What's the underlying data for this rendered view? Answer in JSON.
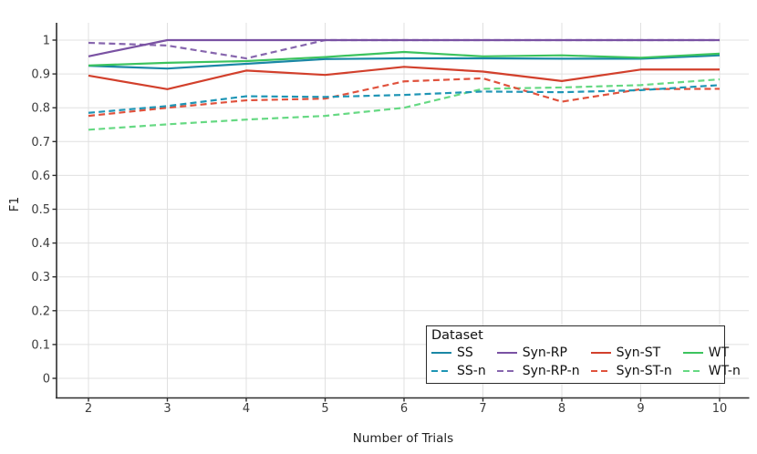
{
  "chart_data": {
    "type": "line",
    "title": "",
    "xlabel": "Number of Trials",
    "ylabel": "F1",
    "legend_title": "Dataset",
    "legend_position": "bottom-right-inside",
    "grid": true,
    "x": [
      2,
      3,
      4,
      5,
      6,
      7,
      8,
      9,
      10
    ],
    "x_tick_labels": [
      "2",
      "3",
      "4",
      "5",
      "6",
      "7",
      "8",
      "9",
      "10"
    ],
    "y_ticks": [
      0,
      0.1,
      0.2,
      0.3,
      0.4,
      0.5,
      0.6,
      0.7,
      0.8,
      0.9,
      1
    ],
    "y_tick_labels": [
      "0",
      "0.1",
      "0.2",
      "0.3",
      "0.4",
      "0.5",
      "0.6",
      "0.7",
      "0.8",
      "0.9",
      "1"
    ],
    "xlim": [
      2,
      10
    ],
    "ylim": [
      0,
      1
    ],
    "colors": {
      "axis": "#2e2e2e",
      "grid": "#e0e0e0",
      "tick_text": "#3d3d3d"
    },
    "series": [
      {
        "name": "SS",
        "style": "solid",
        "color": "#1a87a5",
        "values": [
          0.924,
          0.916,
          0.93,
          0.944,
          0.946,
          0.946,
          0.945,
          0.945,
          0.955
        ]
      },
      {
        "name": "SS-n",
        "style": "dashed",
        "color": "#1e95b5",
        "values": [
          0.785,
          0.805,
          0.834,
          0.832,
          0.838,
          0.848,
          0.846,
          0.852,
          0.867
        ]
      },
      {
        "name": "Syn-RP",
        "style": "solid",
        "color": "#7a52a3",
        "values": [
          0.952,
          1.0,
          1.0,
          1.0,
          1.0,
          1.0,
          1.0,
          1.0,
          1.0
        ]
      },
      {
        "name": "Syn-RP-n",
        "style": "dashed",
        "color": "#8766ae",
        "values": [
          0.992,
          0.984,
          0.946,
          1.0,
          1.0,
          1.0,
          1.0,
          1.0,
          1.0
        ]
      },
      {
        "name": "Syn-ST",
        "style": "solid",
        "color": "#d2402c",
        "values": [
          0.895,
          0.855,
          0.91,
          0.897,
          0.921,
          0.907,
          0.879,
          0.913,
          0.913
        ]
      },
      {
        "name": "Syn-ST-n",
        "style": "dashed",
        "color": "#e0523d",
        "values": [
          0.776,
          0.8,
          0.822,
          0.827,
          0.878,
          0.887,
          0.818,
          0.855,
          0.856
        ]
      },
      {
        "name": "WT",
        "style": "solid",
        "color": "#3cc35e",
        "values": [
          0.925,
          0.933,
          0.938,
          0.95,
          0.965,
          0.952,
          0.955,
          0.948,
          0.96
        ]
      },
      {
        "name": "WT-n",
        "style": "dashed",
        "color": "#66d983",
        "values": [
          0.735,
          0.751,
          0.765,
          0.776,
          0.8,
          0.856,
          0.86,
          0.867,
          0.884
        ]
      }
    ]
  }
}
